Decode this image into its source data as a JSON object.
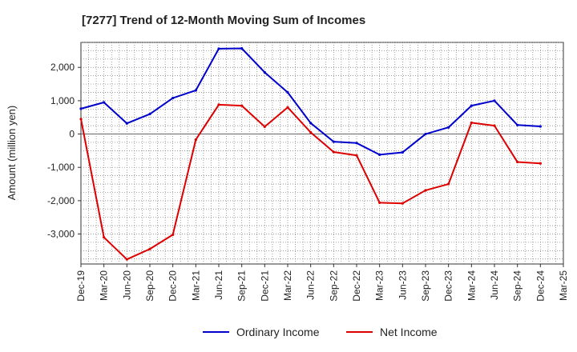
{
  "chart_data": {
    "type": "line",
    "title": "[7277]  Trend of 12-Month Moving Sum of Incomes",
    "xlabel": "",
    "ylabel": "Amount (million yen)",
    "ylim": [
      -3900,
      2750
    ],
    "y_ticks": [
      2000,
      1000,
      0,
      -1000,
      -2000,
      -3000
    ],
    "y_tick_labels": [
      "2,000",
      "1,000",
      "0",
      "-1,000",
      "-2,000",
      "-3,000"
    ],
    "categories": [
      "Dec-19",
      "Mar-20",
      "Jun-20",
      "Sep-20",
      "Dec-20",
      "Mar-21",
      "Jun-21",
      "Sep-21",
      "Dec-21",
      "Mar-22",
      "Jun-22",
      "Sep-22",
      "Dec-22",
      "Mar-23",
      "Jun-23",
      "Sep-23",
      "Dec-23",
      "Mar-24",
      "Jun-24",
      "Sep-24",
      "Dec-24",
      "Mar-25"
    ],
    "grid": true,
    "legend_position": "bottom",
    "series": [
      {
        "name": "Ordinary Income",
        "color": "#0000cc",
        "values": [
          760,
          950,
          320,
          600,
          1080,
          1310,
          2560,
          2570,
          1850,
          1250,
          330,
          -230,
          -270,
          -620,
          -550,
          0,
          200,
          850,
          1000,
          270,
          230,
          null
        ]
      },
      {
        "name": "Net Income",
        "color": "#dd0000",
        "values": [
          450,
          -3100,
          -3760,
          -3450,
          -3020,
          -170,
          880,
          850,
          220,
          800,
          50,
          -540,
          -640,
          -2060,
          -2080,
          -1690,
          -1500,
          340,
          250,
          -840,
          -880,
          null
        ]
      }
    ]
  }
}
